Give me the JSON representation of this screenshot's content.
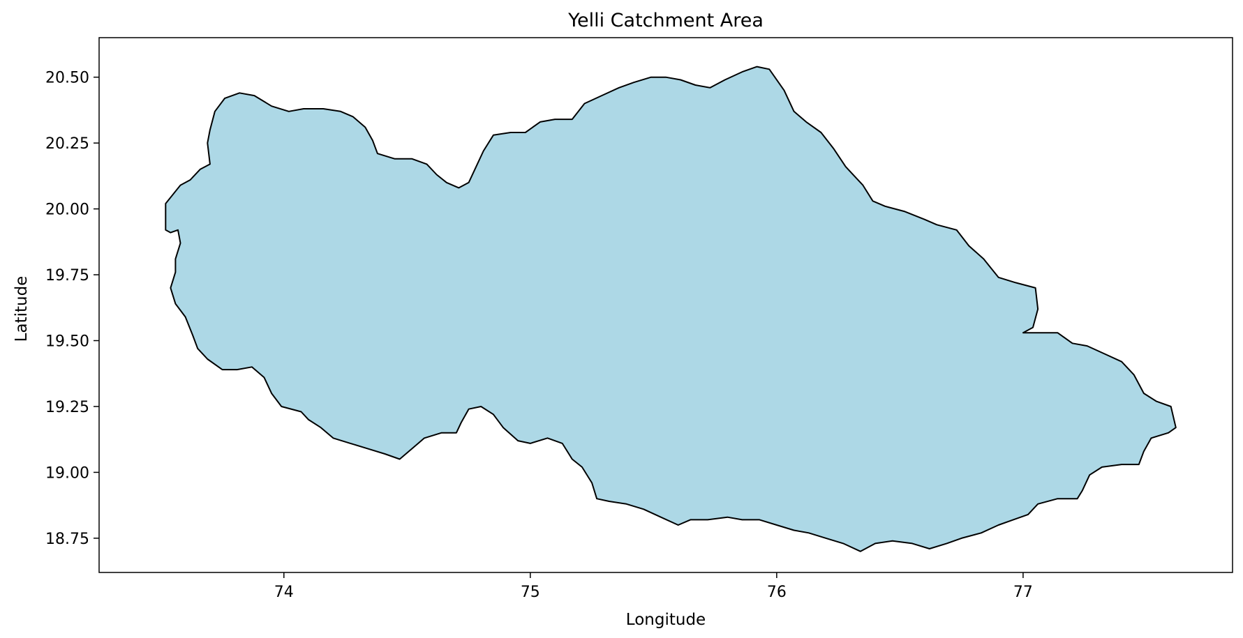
{
  "chart_data": {
    "type": "map",
    "title": "Yelli Catchment Area",
    "xlabel": "Longitude",
    "ylabel": "Latitude",
    "xlim": [
      73.25,
      77.85
    ],
    "ylim": [
      18.62,
      20.65
    ],
    "xticks": [
      74,
      75,
      76,
      77
    ],
    "yticks": [
      18.75,
      19.0,
      19.25,
      19.5,
      19.75,
      20.0,
      20.25,
      20.5
    ],
    "xtick_labels": [
      "74",
      "75",
      "76",
      "77"
    ],
    "ytick_labels": [
      "18.75",
      "19.00",
      "19.25",
      "19.50",
      "19.75",
      "20.00",
      "20.25",
      "20.50"
    ],
    "grid": false,
    "fill_color": "#add8e6",
    "edge_color": "#000000",
    "boundary": [
      [
        73.52,
        19.92
      ],
      [
        73.52,
        20.02
      ],
      [
        73.58,
        20.09
      ],
      [
        73.62,
        20.11
      ],
      [
        73.66,
        20.15
      ],
      [
        73.7,
        20.17
      ],
      [
        73.69,
        20.25
      ],
      [
        73.7,
        20.3
      ],
      [
        73.72,
        20.37
      ],
      [
        73.76,
        20.42
      ],
      [
        73.82,
        20.44
      ],
      [
        73.88,
        20.43
      ],
      [
        73.95,
        20.39
      ],
      [
        74.02,
        20.37
      ],
      [
        74.08,
        20.38
      ],
      [
        74.16,
        20.38
      ],
      [
        74.23,
        20.37
      ],
      [
        74.28,
        20.35
      ],
      [
        74.33,
        20.31
      ],
      [
        74.36,
        20.26
      ],
      [
        74.38,
        20.21
      ],
      [
        74.45,
        20.19
      ],
      [
        74.52,
        20.19
      ],
      [
        74.58,
        20.17
      ],
      [
        74.62,
        20.13
      ],
      [
        74.66,
        20.1
      ],
      [
        74.71,
        20.08
      ],
      [
        74.75,
        20.1
      ],
      [
        74.78,
        20.16
      ],
      [
        74.81,
        20.22
      ],
      [
        74.85,
        20.28
      ],
      [
        74.92,
        20.29
      ],
      [
        74.98,
        20.29
      ],
      [
        75.04,
        20.33
      ],
      [
        75.1,
        20.34
      ],
      [
        75.17,
        20.34
      ],
      [
        75.22,
        20.4
      ],
      [
        75.29,
        20.43
      ],
      [
        75.36,
        20.46
      ],
      [
        75.42,
        20.48
      ],
      [
        75.49,
        20.5
      ],
      [
        75.55,
        20.5
      ],
      [
        75.61,
        20.49
      ],
      [
        75.67,
        20.47
      ],
      [
        75.73,
        20.46
      ],
      [
        75.79,
        20.49
      ],
      [
        75.86,
        20.52
      ],
      [
        75.92,
        20.54
      ],
      [
        75.97,
        20.53
      ],
      [
        76.03,
        20.45
      ],
      [
        76.07,
        20.37
      ],
      [
        76.12,
        20.33
      ],
      [
        76.18,
        20.29
      ],
      [
        76.23,
        20.23
      ],
      [
        76.28,
        20.16
      ],
      [
        76.35,
        20.09
      ],
      [
        76.39,
        20.03
      ],
      [
        76.44,
        20.01
      ],
      [
        76.52,
        19.99
      ],
      [
        76.6,
        19.96
      ],
      [
        76.65,
        19.94
      ],
      [
        76.73,
        19.92
      ],
      [
        76.78,
        19.86
      ],
      [
        76.84,
        19.81
      ],
      [
        76.9,
        19.74
      ],
      [
        76.97,
        19.72
      ],
      [
        77.05,
        19.7
      ],
      [
        77.06,
        19.62
      ],
      [
        77.04,
        19.55
      ],
      [
        77.0,
        19.53
      ],
      [
        77.07,
        19.53
      ],
      [
        77.14,
        19.53
      ],
      [
        77.2,
        19.49
      ],
      [
        77.26,
        19.48
      ],
      [
        77.33,
        19.45
      ],
      [
        77.4,
        19.42
      ],
      [
        77.45,
        19.37
      ],
      [
        77.49,
        19.3
      ],
      [
        77.54,
        19.27
      ],
      [
        77.6,
        19.25
      ],
      [
        77.62,
        19.17
      ],
      [
        77.59,
        19.15
      ],
      [
        77.52,
        19.13
      ],
      [
        77.49,
        19.08
      ],
      [
        77.47,
        19.03
      ],
      [
        77.4,
        19.03
      ],
      [
        77.32,
        19.02
      ],
      [
        77.27,
        18.99
      ],
      [
        77.24,
        18.93
      ],
      [
        77.22,
        18.9
      ],
      [
        77.14,
        18.9
      ],
      [
        77.06,
        18.88
      ],
      [
        77.02,
        18.84
      ],
      [
        76.96,
        18.82
      ],
      [
        76.9,
        18.8
      ],
      [
        76.83,
        18.77
      ],
      [
        76.75,
        18.75
      ],
      [
        76.69,
        18.73
      ],
      [
        76.62,
        18.71
      ],
      [
        76.55,
        18.73
      ],
      [
        76.47,
        18.74
      ],
      [
        76.4,
        18.73
      ],
      [
        76.34,
        18.7
      ],
      [
        76.27,
        18.73
      ],
      [
        76.2,
        18.75
      ],
      [
        76.13,
        18.77
      ],
      [
        76.07,
        18.78
      ],
      [
        76.0,
        18.8
      ],
      [
        75.93,
        18.82
      ],
      [
        75.86,
        18.82
      ],
      [
        75.8,
        18.83
      ],
      [
        75.72,
        18.82
      ],
      [
        75.65,
        18.82
      ],
      [
        75.6,
        18.8
      ],
      [
        75.53,
        18.83
      ],
      [
        75.46,
        18.86
      ],
      [
        75.39,
        18.88
      ],
      [
        75.32,
        18.89
      ],
      [
        75.27,
        18.9
      ],
      [
        75.25,
        18.96
      ],
      [
        75.21,
        19.02
      ],
      [
        75.17,
        19.05
      ],
      [
        75.13,
        19.11
      ],
      [
        75.07,
        19.13
      ],
      [
        75.0,
        19.11
      ],
      [
        74.95,
        19.12
      ],
      [
        74.89,
        19.17
      ],
      [
        74.85,
        19.22
      ],
      [
        74.8,
        19.25
      ],
      [
        74.75,
        19.24
      ],
      [
        74.72,
        19.19
      ],
      [
        74.7,
        19.15
      ],
      [
        74.64,
        19.15
      ],
      [
        74.57,
        19.13
      ],
      [
        74.52,
        19.09
      ],
      [
        74.47,
        19.05
      ],
      [
        74.41,
        19.07
      ],
      [
        74.34,
        19.09
      ],
      [
        74.27,
        19.11
      ],
      [
        74.2,
        19.13
      ],
      [
        74.15,
        19.17
      ],
      [
        74.1,
        19.2
      ],
      [
        74.07,
        19.23
      ],
      [
        73.99,
        19.25
      ],
      [
        73.95,
        19.3
      ],
      [
        73.92,
        19.36
      ],
      [
        73.87,
        19.4
      ],
      [
        73.81,
        19.39
      ],
      [
        73.75,
        19.39
      ],
      [
        73.69,
        19.43
      ],
      [
        73.65,
        19.47
      ],
      [
        73.63,
        19.52
      ],
      [
        73.6,
        19.59
      ],
      [
        73.56,
        19.64
      ],
      [
        73.54,
        19.7
      ],
      [
        73.56,
        19.76
      ],
      [
        73.56,
        19.81
      ],
      [
        73.58,
        19.87
      ],
      [
        73.57,
        19.92
      ],
      [
        73.54,
        19.91
      ]
    ]
  }
}
